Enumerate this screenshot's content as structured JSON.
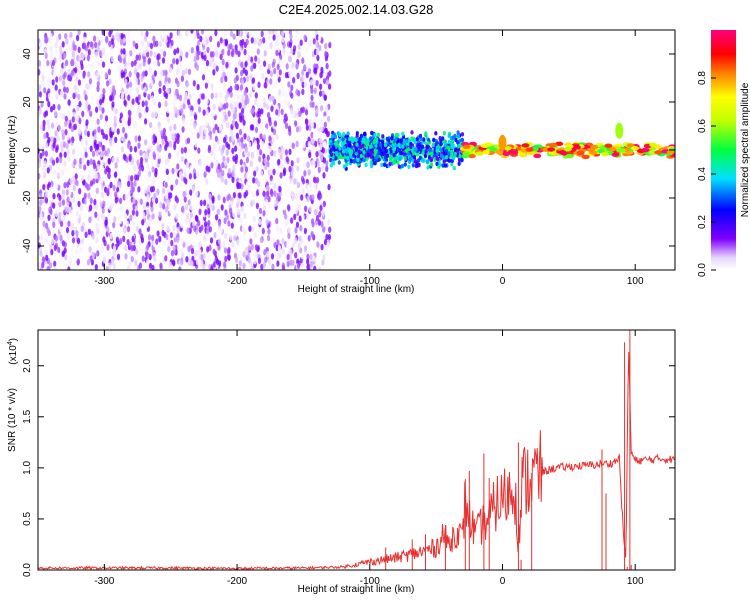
{
  "page_title": "C2E4.2025.002.14.03.G28",
  "chart_data": [
    {
      "type": "heatmap",
      "xlabel": "Height of straight line (km)",
      "ylabel": "Frequency (Hz)",
      "xlim": [
        -350,
        130
      ],
      "ylim": [
        -50,
        50
      ],
      "xticks": [
        -300,
        -200,
        -100,
        0,
        100
      ],
      "yticks": [
        -40,
        -20,
        0,
        20,
        40
      ],
      "colorbar": {
        "label": "Normalized spectral amplitude",
        "range": [
          0,
          1
        ],
        "ticks": [
          0.0,
          0.2,
          0.4,
          0.6,
          0.8
        ],
        "colormap": "rainbow (violet-blue-cyan-green-yellow-red-magenta)"
      },
      "regions": [
        {
          "x_range": [
            -350,
            -130
          ],
          "freq_range": [
            -50,
            50
          ],
          "amplitude": [
            0.0,
            0.15
          ],
          "description": "broadband low-amplitude noise"
        },
        {
          "x_range": [
            -130,
            -30
          ],
          "freq_range": [
            -8,
            8
          ],
          "amplitude": [
            0.15,
            0.5
          ],
          "description": "narrowing signal band near 0 Hz"
        },
        {
          "x_range": [
            -30,
            130
          ],
          "freq_range": [
            -3,
            3
          ],
          "amplitude": [
            0.5,
            1.0
          ],
          "description": "strong narrow signal at ~1 Hz"
        }
      ],
      "features": [
        {
          "x": 0,
          "frequency": 3,
          "amplitude": 0.8
        },
        {
          "x": 88,
          "frequency": 8,
          "amplitude": 0.6
        }
      ]
    },
    {
      "type": "line",
      "xlabel": "Height of straight line (km)",
      "ylabel": "SNR (10 * v/v)",
      "yscale_label": "(x10",
      "yscale_exp": "4",
      "xlim": [
        -350,
        130
      ],
      "ylim": [
        0,
        23500
      ],
      "xticks": [
        -300,
        -200,
        -100,
        0,
        100
      ],
      "yticks": [
        0.0,
        0.5,
        1.0,
        1.5,
        2.0
      ],
      "ytick_labels": [
        "0.0",
        "0.5",
        "1.0",
        "1.5",
        "2.0"
      ],
      "line_color": "#e8312f",
      "series": [
        {
          "x": [
            -350,
            -300,
            -250,
            -200,
            -150,
            -120,
            -100,
            -90,
            -80,
            -70,
            -60,
            -50,
            -45,
            -40,
            -35,
            -30,
            -28,
            -25,
            -20,
            -15,
            -10,
            -5,
            0,
            5,
            10,
            12,
            15,
            20,
            25,
            30,
            35,
            40,
            50,
            60,
            70,
            75,
            80,
            85,
            88,
            90,
            93,
            95,
            97,
            100,
            110,
            120,
            130
          ],
          "y": [
            200,
            200,
            200,
            150,
            200,
            300,
            800,
            1000,
            1200,
            1500,
            1800,
            2200,
            3500,
            2500,
            4000,
            3000,
            7000,
            5000,
            3500,
            4500,
            5000,
            6500,
            7000,
            7500,
            8000,
            2500,
            8500,
            9000,
            9300,
            9500,
            9800,
            10000,
            10100,
            10200,
            10300,
            10400,
            10400,
            10600,
            11000,
            6000,
            500,
            22500,
            11500,
            10700,
            10800,
            10900,
            10800
          ]
        }
      ],
      "spikes": [
        {
          "x": -88,
          "y": 2200
        },
        {
          "x": -68,
          "y": 3000
        },
        {
          "x": -58,
          "y": 3500
        },
        {
          "x": -43,
          "y": 4400
        },
        {
          "x": -28,
          "y": 8900
        },
        {
          "x": -25,
          "y": 9700
        },
        {
          "x": -14,
          "y": 11400
        },
        {
          "x": -10,
          "y": 9000
        },
        {
          "x": 12,
          "y": 12500
        },
        {
          "x": 14,
          "y": 1000
        },
        {
          "x": 22,
          "y": 9500
        },
        {
          "x": 75,
          "y": 11800
        },
        {
          "x": 78,
          "y": 7500
        },
        {
          "x": 92,
          "y": 22300
        },
        {
          "x": 94,
          "y": 300
        },
        {
          "x": 96,
          "y": 23500
        },
        {
          "x": 97,
          "y": 500
        }
      ]
    }
  ]
}
